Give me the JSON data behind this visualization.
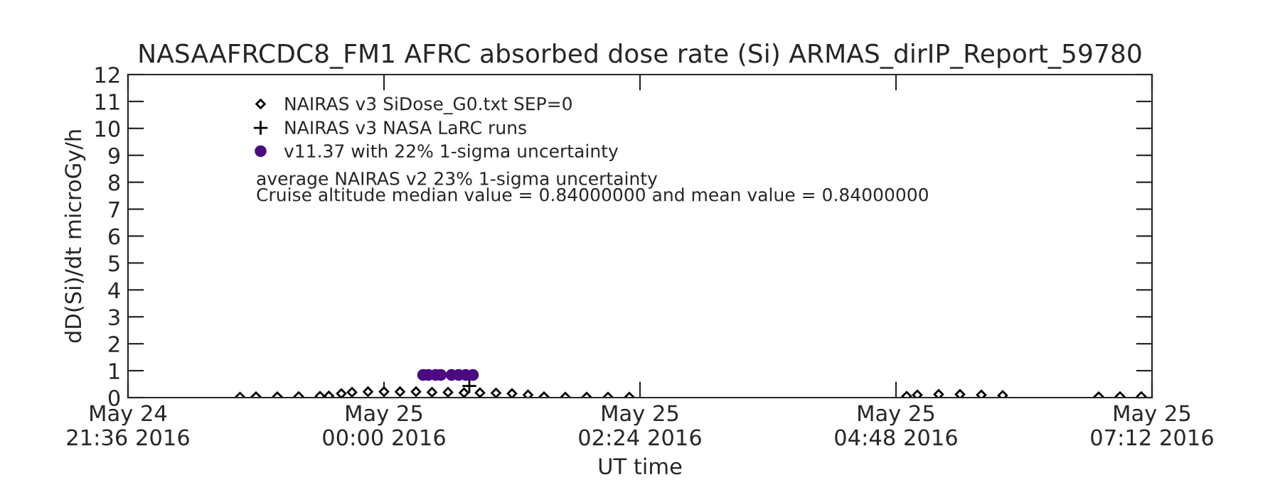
{
  "chart_data": {
    "type": "scatter",
    "title": "NASAAFRCDC8_FM1 AFRC absorbed dose rate (Si) ARMAS_dirIP_Report_59780",
    "xlabel": "UT time",
    "ylabel": "dD(Si)/dt microGy/h",
    "xlim": [
      "2016-05-24T21:36",
      "2016-05-25T07:12"
    ],
    "xticks": [
      {
        "value": "2016-05-24T21:36",
        "label": "May 24\n21:36 2016"
      },
      {
        "value": "2016-05-25T00:00",
        "label": "May 25\n00:00 2016"
      },
      {
        "value": "2016-05-25T02:24",
        "label": "May 25\n02:24 2016"
      },
      {
        "value": "2016-05-25T04:48",
        "label": "May 25\n04:48 2016"
      },
      {
        "value": "2016-05-25T07:12",
        "label": "May 25\n07:12 2016"
      }
    ],
    "ylim": [
      0,
      12
    ],
    "yticks": [
      0,
      1,
      2,
      3,
      4,
      5,
      6,
      7,
      8,
      9,
      10,
      11,
      12
    ],
    "grid": false,
    "legend": "top left",
    "annotations": [
      "average NAIRAS v2 23% 1-sigma uncertainty",
      "Cruise altitude median value = 0.84000000 and mean value = 0.84000000"
    ],
    "series": [
      {
        "name": "NAIRAS v3 SiDose_G0.txt SEP=0",
        "color": "#000000",
        "marker": "diamond",
        "x": [
          "2016-05-24T22:39",
          "2016-05-24T22:48",
          "2016-05-24T23:00",
          "2016-05-24T23:12",
          "2016-05-24T23:24",
          "2016-05-24T23:29",
          "2016-05-24T23:36",
          "2016-05-24T23:42",
          "2016-05-24T23:51",
          "2016-05-25T00:00",
          "2016-05-25T00:09",
          "2016-05-25T00:18",
          "2016-05-25T00:27",
          "2016-05-25T00:36",
          "2016-05-25T00:45",
          "2016-05-25T00:54",
          "2016-05-25T01:03",
          "2016-05-25T01:12",
          "2016-05-25T01:21",
          "2016-05-25T01:30",
          "2016-05-25T01:42",
          "2016-05-25T01:54",
          "2016-05-25T02:06",
          "2016-05-25T02:18",
          "2016-05-25T04:54",
          "2016-05-25T05:00",
          "2016-05-25T05:12",
          "2016-05-25T05:24",
          "2016-05-25T05:36",
          "2016-05-25T05:48",
          "2016-05-25T06:42",
          "2016-05-25T06:54",
          "2016-05-25T07:06"
        ],
        "values": [
          0.02,
          0.03,
          0.03,
          0.04,
          0.05,
          0.06,
          0.15,
          0.2,
          0.22,
          0.22,
          0.22,
          0.22,
          0.2,
          0.2,
          0.18,
          0.18,
          0.17,
          0.15,
          0.1,
          0.03,
          0.02,
          0.02,
          0.02,
          0.02,
          0.05,
          0.1,
          0.12,
          0.12,
          0.1,
          0.08,
          0.03,
          0.04,
          0.04
        ]
      },
      {
        "name": "NAIRAS v3 NASA LaRC runs",
        "color": "#000000",
        "marker": "cross",
        "x": [
          "2016-05-25T00:48"
        ],
        "values": [
          0.43
        ]
      },
      {
        "name": "v11.37 with 22% 1-sigma uncertainty",
        "color": "#4b0a82",
        "marker": "circle",
        "x": [
          "2016-05-25T00:22",
          "2016-05-25T00:25",
          "2016-05-25T00:29",
          "2016-05-25T00:32",
          "2016-05-25T00:38",
          "2016-05-25T00:42",
          "2016-05-25T00:46",
          "2016-05-25T00:50"
        ],
        "values": [
          0.84,
          0.84,
          0.84,
          0.84,
          0.84,
          0.84,
          0.84,
          0.84
        ],
        "errors": [
          0.18,
          0.18,
          0.18,
          0.18,
          0.18,
          0.18,
          0.18,
          0.18
        ]
      }
    ]
  }
}
